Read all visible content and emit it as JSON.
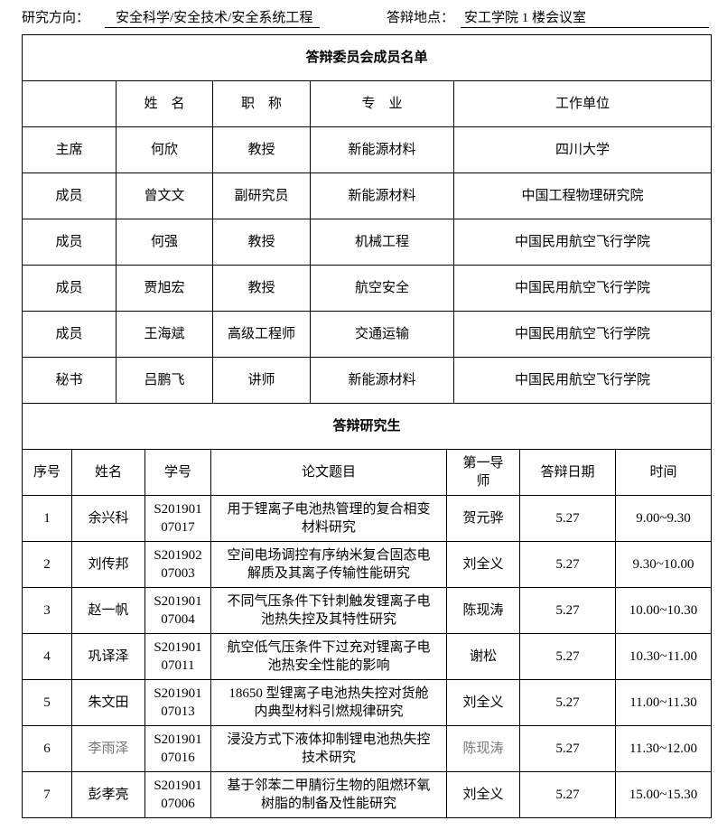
{
  "header": {
    "direction_label": "研究方向：",
    "direction_value": "安全科学/安全技术/安全系统工程",
    "location_label": "答辩地点：",
    "location_value": "安工学院 1 楼会议室"
  },
  "committee": {
    "title": "答辩委员会成员名单",
    "columns": [
      "",
      "姓　名",
      "职　称",
      "专　业",
      "工作单位"
    ],
    "rows": [
      [
        "主席",
        "何欣",
        "教授",
        "新能源材料",
        "四川大学"
      ],
      [
        "成员",
        "曾文文",
        "副研究员",
        "新能源材料",
        "中国工程物理研究院"
      ],
      [
        "成员",
        "何强",
        "教授",
        "机械工程",
        "中国民用航空飞行学院"
      ],
      [
        "成员",
        "贾旭宏",
        "教授",
        "航空安全",
        "中国民用航空飞行学院"
      ],
      [
        "成员",
        "王海斌",
        "高级工程师",
        "交通运输",
        "中国民用航空飞行学院"
      ],
      [
        "秘书",
        "吕鹏飞",
        "讲师",
        "新能源材料",
        "中国民用航空飞行学院"
      ]
    ]
  },
  "students": {
    "title": "答辩研究生",
    "columns": [
      "序号",
      "姓名",
      "学号",
      "论文题目",
      "第一导师",
      "答辩日期",
      "时间"
    ],
    "rows": [
      [
        "1",
        "余兴科",
        "S20190107017",
        "用于锂离子电池热管理的复合相变材料研究",
        "贺元骅",
        "5.27",
        "9.00~9.30"
      ],
      [
        "2",
        "刘传邦",
        "S20190207003",
        "空间电场调控有序纳米复合固态电解质及其离子传输性能研究",
        "刘全义",
        "5.27",
        "9.30~10.00"
      ],
      [
        "3",
        "赵一帆",
        "S20190107004",
        "不同气压条件下针刺触发锂离子电池热失控及其特性研究",
        "陈现涛",
        "5.27",
        "10.00~10.30"
      ],
      [
        "4",
        "巩译泽",
        "S20190107011",
        "航空低气压条件下过充对锂离子电池热安全性能的影响",
        "谢松",
        "5.27",
        "10.30~11.00"
      ],
      [
        "5",
        "朱文田",
        "S20190107013",
        "18650 型锂离子电池热失控对货舱内典型材料引燃规律研究",
        "刘全义",
        "5.27",
        "11.00~11.30"
      ],
      [
        "6",
        "李雨泽",
        "S20190107016",
        "浸没方式下液体抑制锂电池热失控技术研究",
        "陈现涛",
        "5.27",
        "11.30~12.00"
      ],
      [
        "7",
        "彭孝亮",
        "S20190107006",
        "基于邻苯二甲腈衍生物的阻燃环氧树脂的制备及性能研究",
        "刘全义",
        "5.27",
        "15.00~15.30"
      ]
    ]
  }
}
